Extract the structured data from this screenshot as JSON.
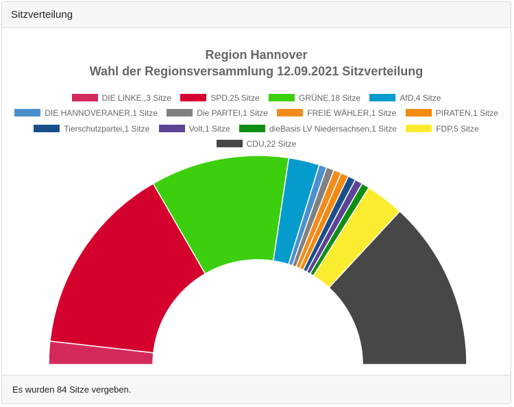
{
  "header": {
    "title": "Sitzverteilung"
  },
  "footer": {
    "text": "Es wurden 84 Sitze vergeben."
  },
  "chart_data": {
    "type": "pie",
    "variant": "half-doughnut (parliament)",
    "title": "Region Hannover",
    "subtitle": "Wahl der Regionsversammlung 12.09.2021 Sitzverteilung",
    "legend_position": "top",
    "total_seats": 84,
    "series": [
      {
        "label": "DIE LINKE.,3 Sitze",
        "party": "DIE LINKE.",
        "value": 3,
        "color": "#d42a5b"
      },
      {
        "label": "SPD,25 Sitze",
        "party": "SPD",
        "value": 25,
        "color": "#d4002e"
      },
      {
        "label": "GRÜNE,18 Sitze",
        "party": "GRÜNE",
        "value": 18,
        "color": "#3ccf0e"
      },
      {
        "label": "AfD,4 Sitze",
        "party": "AfD",
        "value": 4,
        "color": "#059ccd"
      },
      {
        "label": "DIE HANNOVERANER,1 Sitze",
        "party": "DIE HANNOVERANER",
        "value": 1,
        "color": "#4a90cd"
      },
      {
        "label": "Die PARTEI,1 Sitze",
        "party": "Die PARTEI",
        "value": 1,
        "color": "#808080"
      },
      {
        "label": "FREIE WÄHLER,1 Sitze",
        "party": "FREIE WÄHLER",
        "value": 1,
        "color": "#f28c1e"
      },
      {
        "label": "PIRATEN,1 Sitze",
        "party": "PIRATEN",
        "value": 1,
        "color": "#f58a0f"
      },
      {
        "label": "Tierschutzpartei,1 Sitze",
        "party": "Tierschutzpartei",
        "value": 1,
        "color": "#1b4f8c"
      },
      {
        "label": "Volt,1 Sitze",
        "party": "Volt",
        "value": 1,
        "color": "#5e4394"
      },
      {
        "label": "dieBasis LV Niedersachsen,1 Sitze",
        "party": "dieBasis LV Niedersachsen",
        "value": 1,
        "color": "#0e8f14"
      },
      {
        "label": "FDP,5 Sitze",
        "party": "FDP",
        "value": 5,
        "color": "#fcec30"
      },
      {
        "label": "CDU,22 Sitze",
        "party": "CDU",
        "value": 22,
        "color": "#474747"
      }
    ]
  }
}
